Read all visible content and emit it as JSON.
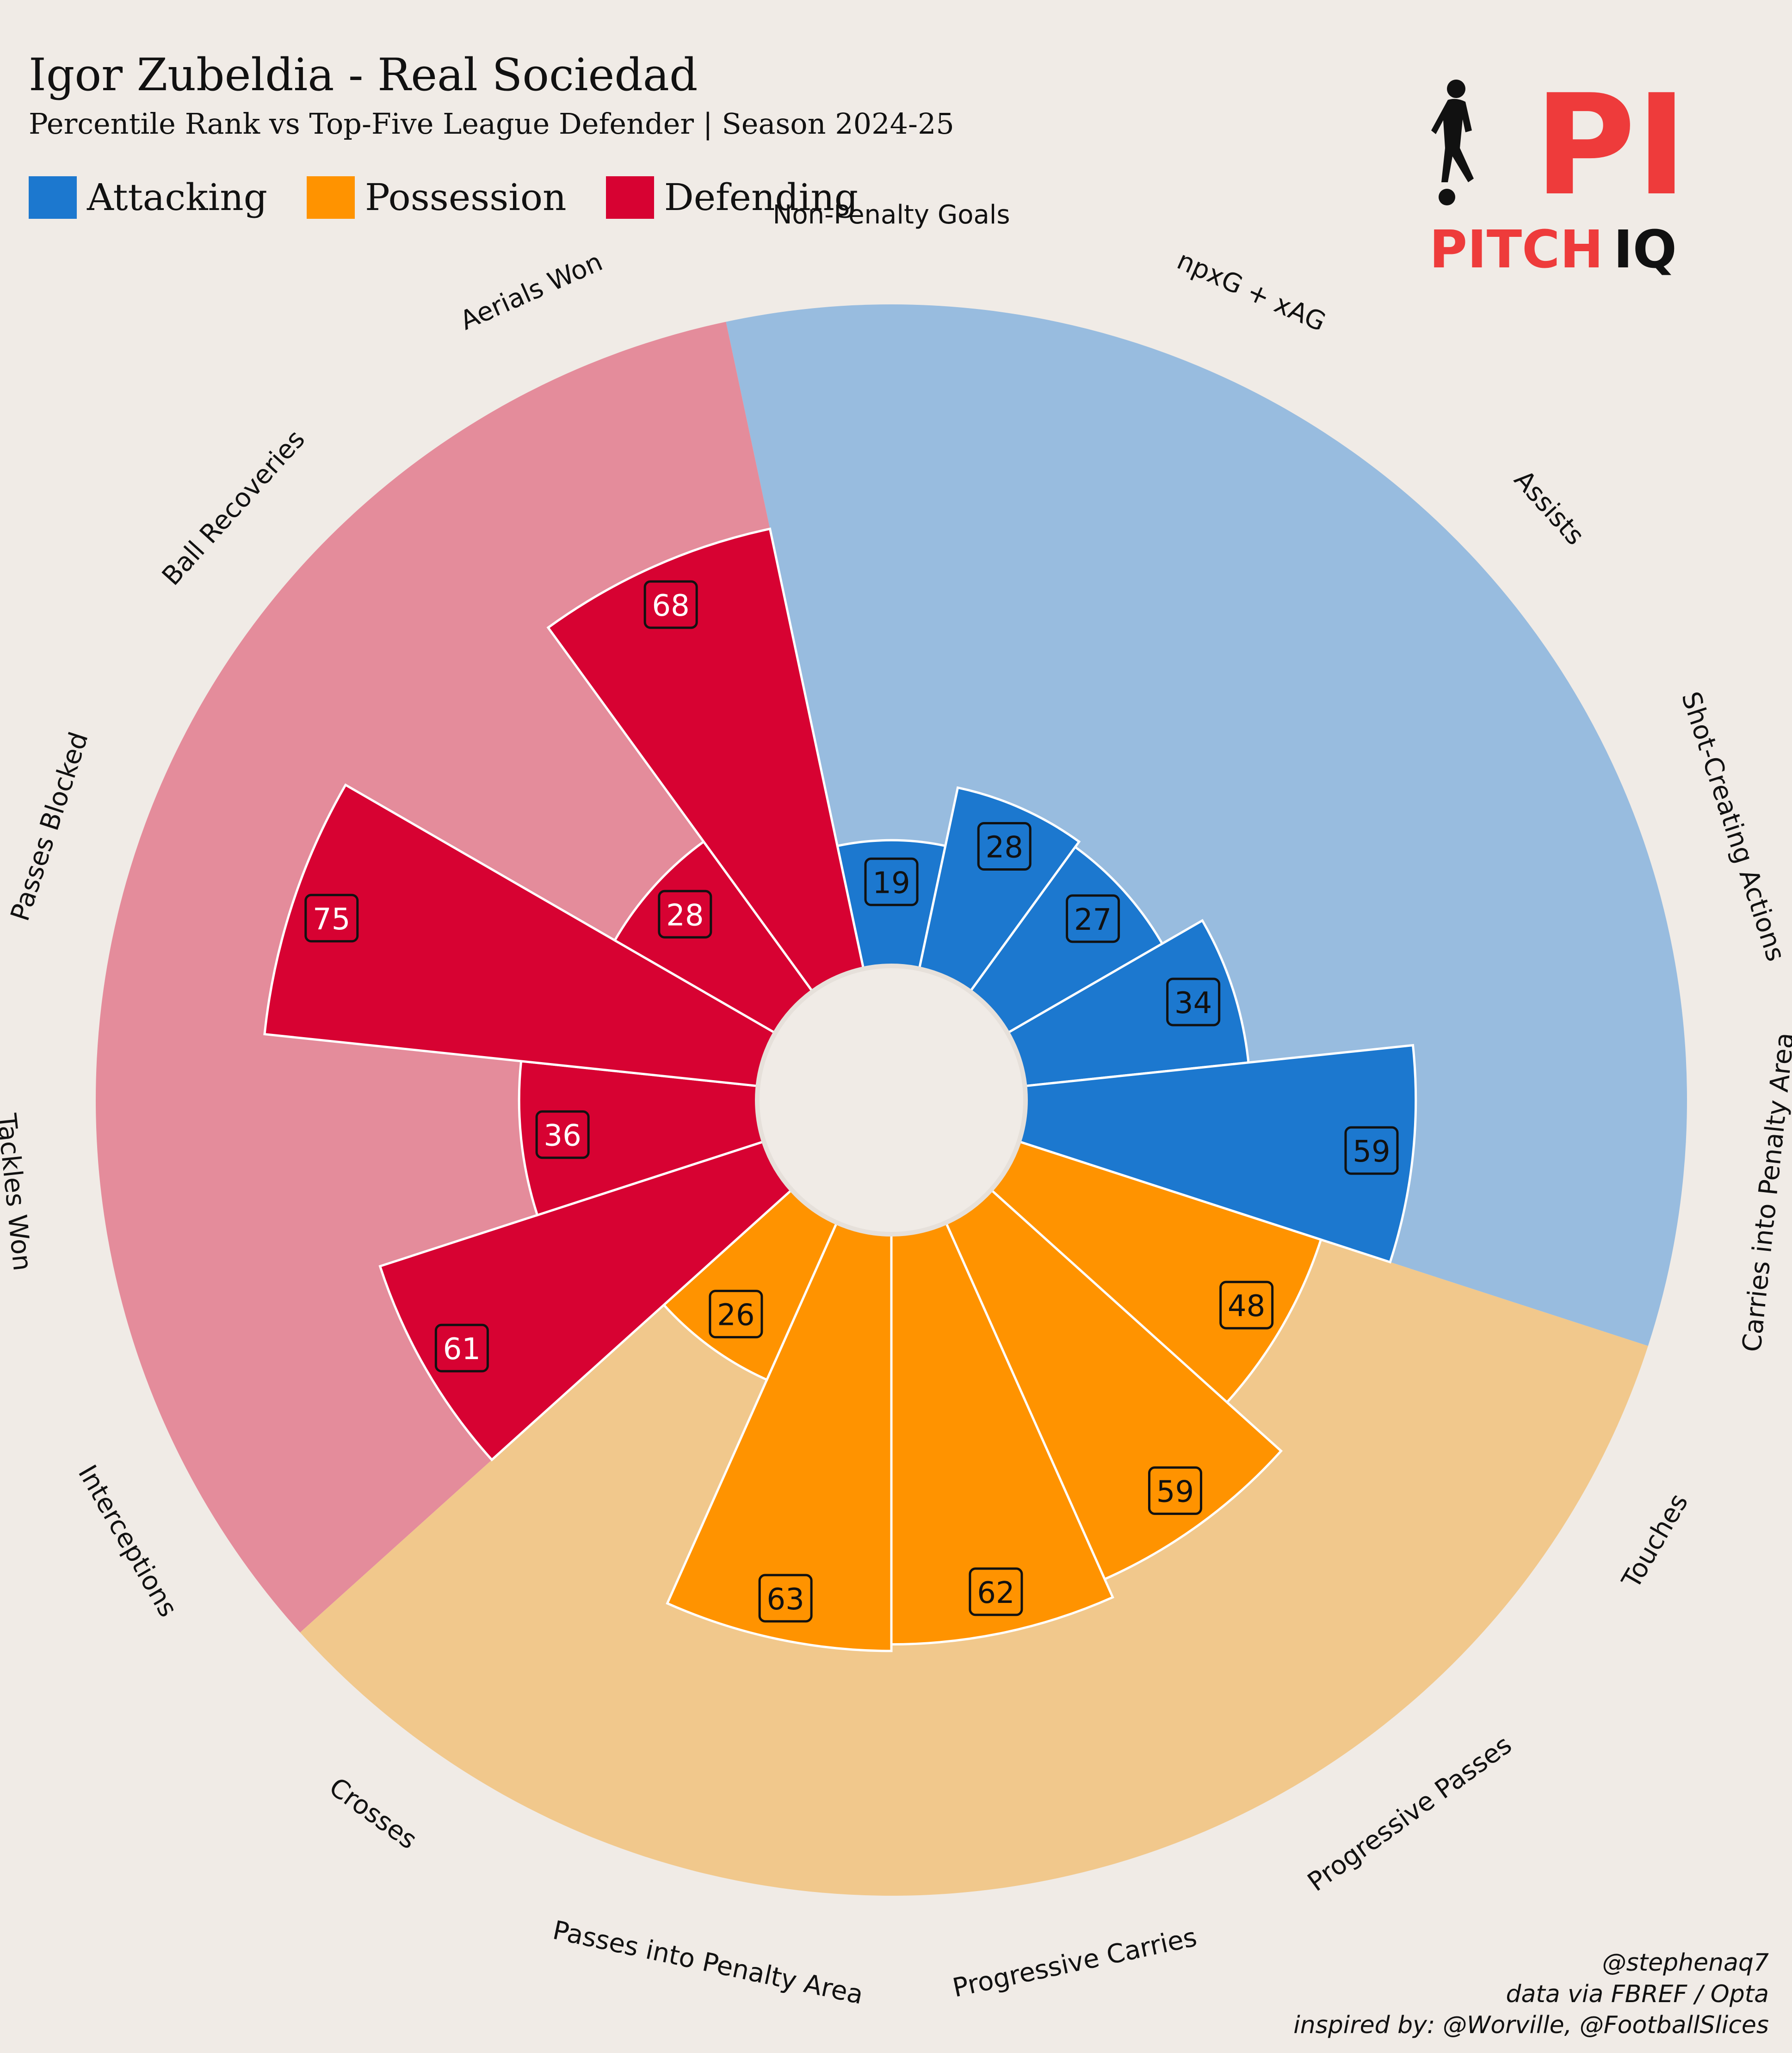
{
  "header": {
    "title": "Igor Zubeldia - Real Sociedad",
    "subtitle": "Percentile Rank vs Top-Five League Defender | Season 2024-25"
  },
  "legend": [
    {
      "label": "Attacking",
      "color": "#1c78cf"
    },
    {
      "label": "Possession",
      "color": "#ff9300"
    },
    {
      "label": "Defending",
      "color": "#d70232"
    }
  ],
  "logo": {
    "mark": "PI",
    "brand": "PITCH",
    "suffix": "IQ",
    "icon": "footballer-silhouette-icon"
  },
  "credits": {
    "handle": "@stephenaq7",
    "source": "data via FBREF / Opta",
    "inspired": "inspired by: @Worville, @FootballSlices"
  },
  "chart_data": {
    "type": "polar-bar",
    "title": "Igor Zubeldia - Real Sociedad",
    "subtitle": "Percentile Rank vs Top-Five League Defender | Season 2024-25",
    "rlim": [
      0,
      100
    ],
    "direction": "clockwise",
    "start_label": "Non-Penalty Goals",
    "categories": [
      "Non-Penalty Goals",
      "npxG + xAG",
      "Assists",
      "Shot-Creating Actions",
      "Carries into Penalty Area",
      "Touches",
      "Progressive Passes",
      "Progressive Carries",
      "Passes into Penalty Area",
      "Crosses",
      "Interceptions",
      "Tackles Won",
      "Passes Blocked",
      "Ball Recoveries",
      "Aerials Won"
    ],
    "values": [
      19,
      28,
      27,
      34,
      59,
      48,
      59,
      62,
      63,
      26,
      61,
      36,
      75,
      28,
      68
    ],
    "groups": [
      "Attacking",
      "Attacking",
      "Attacking",
      "Attacking",
      "Attacking",
      "Possession",
      "Possession",
      "Possession",
      "Possession",
      "Possession",
      "Defending",
      "Defending",
      "Defending",
      "Defending",
      "Defending"
    ],
    "group_colors": {
      "Attacking": {
        "bar": "#1c78cf",
        "background": "#98bcdf"
      },
      "Possession": {
        "bar": "#ff9300",
        "background": "#f1c88c"
      },
      "Defending": {
        "bar": "#d70232",
        "background": "#e48c9b"
      }
    },
    "label_text_colors": {
      "Attacking": "#111111",
      "Possession": "#111111",
      "Defending": "#ffffff"
    }
  }
}
